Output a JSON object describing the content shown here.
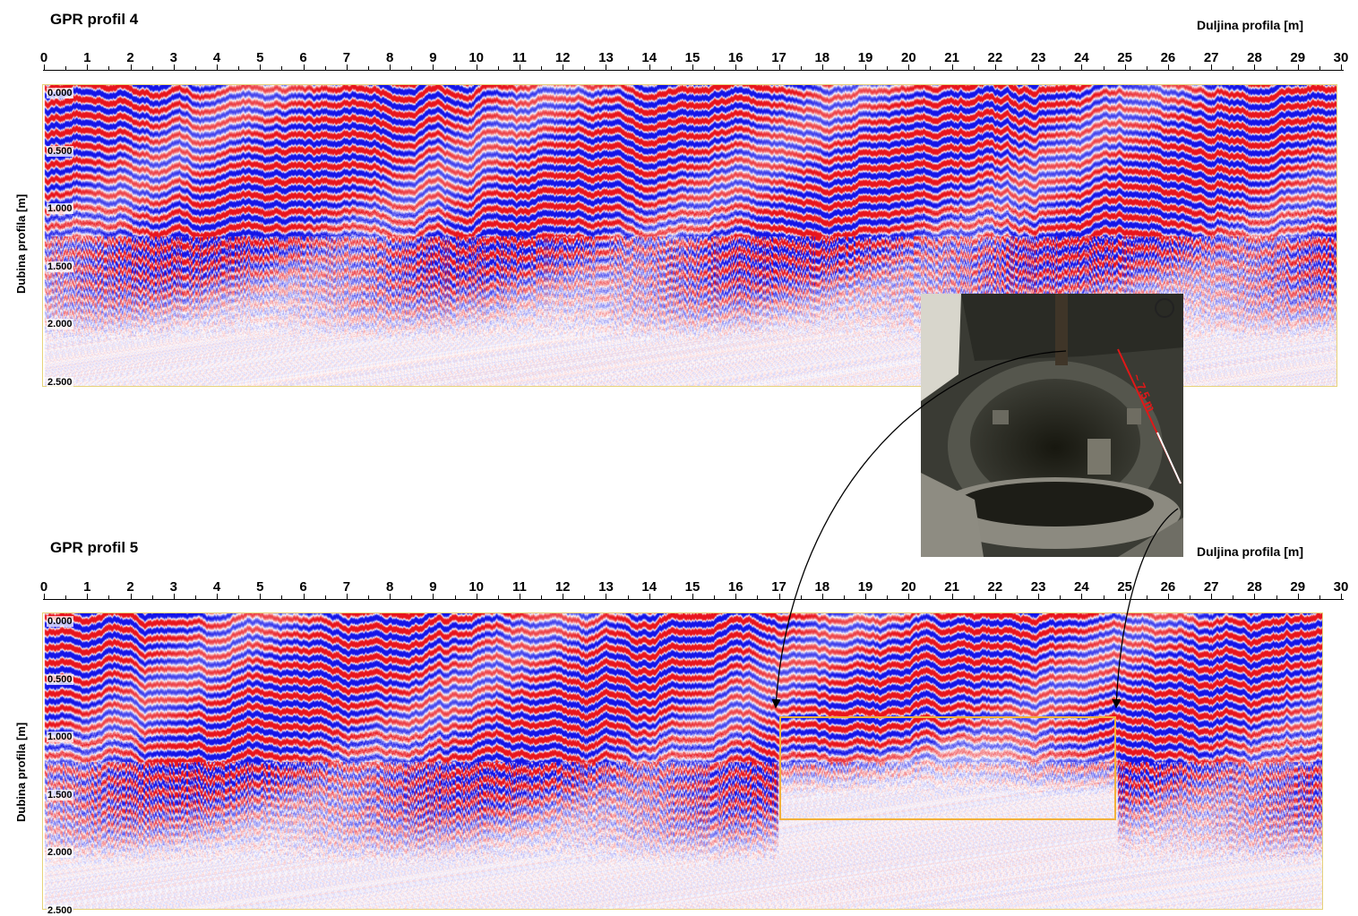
{
  "profiles": [
    {
      "title": "GPR profil 4",
      "xlabel": "Duljina profila [m]",
      "ylabel": "Dubina profila [m]",
      "x_ticks": [
        "0",
        "1",
        "2",
        "3",
        "4",
        "5",
        "6",
        "7",
        "8",
        "9",
        "10",
        "11",
        "12",
        "13",
        "14",
        "15",
        "16",
        "17",
        "18",
        "19",
        "20",
        "21",
        "22",
        "23",
        "24",
        "25",
        "26",
        "27",
        "28",
        "29",
        "30"
      ],
      "depth_ticks": [
        "0.000",
        "0.500",
        "1.000",
        "1.500",
        "2.000",
        "2.500"
      ]
    },
    {
      "title": "GPR profil 5",
      "xlabel": "Duljina profila [m]",
      "ylabel": "Dubina profila [m]",
      "x_ticks": [
        "0",
        "1",
        "2",
        "3",
        "4",
        "5",
        "6",
        "7",
        "8",
        "9",
        "10",
        "11",
        "12",
        "13",
        "14",
        "15",
        "16",
        "17",
        "18",
        "19",
        "20",
        "21",
        "22",
        "23",
        "24",
        "25",
        "26",
        "27",
        "28",
        "29",
        "30"
      ],
      "depth_ticks": [
        "0.000",
        "0.500",
        "1.000",
        "1.500",
        "2.000",
        "2.500"
      ],
      "highlight": {
        "x_range": [
          17,
          24.8
        ],
        "depth_range": [
          0.85,
          1.75
        ]
      }
    }
  ],
  "photo": {
    "measurement_label": "~ 7.5 m"
  },
  "colors": {
    "positive": "#e8141c",
    "negative": "#1414e8",
    "highlight": "#f2b23a",
    "measure_line": "#e01818"
  }
}
